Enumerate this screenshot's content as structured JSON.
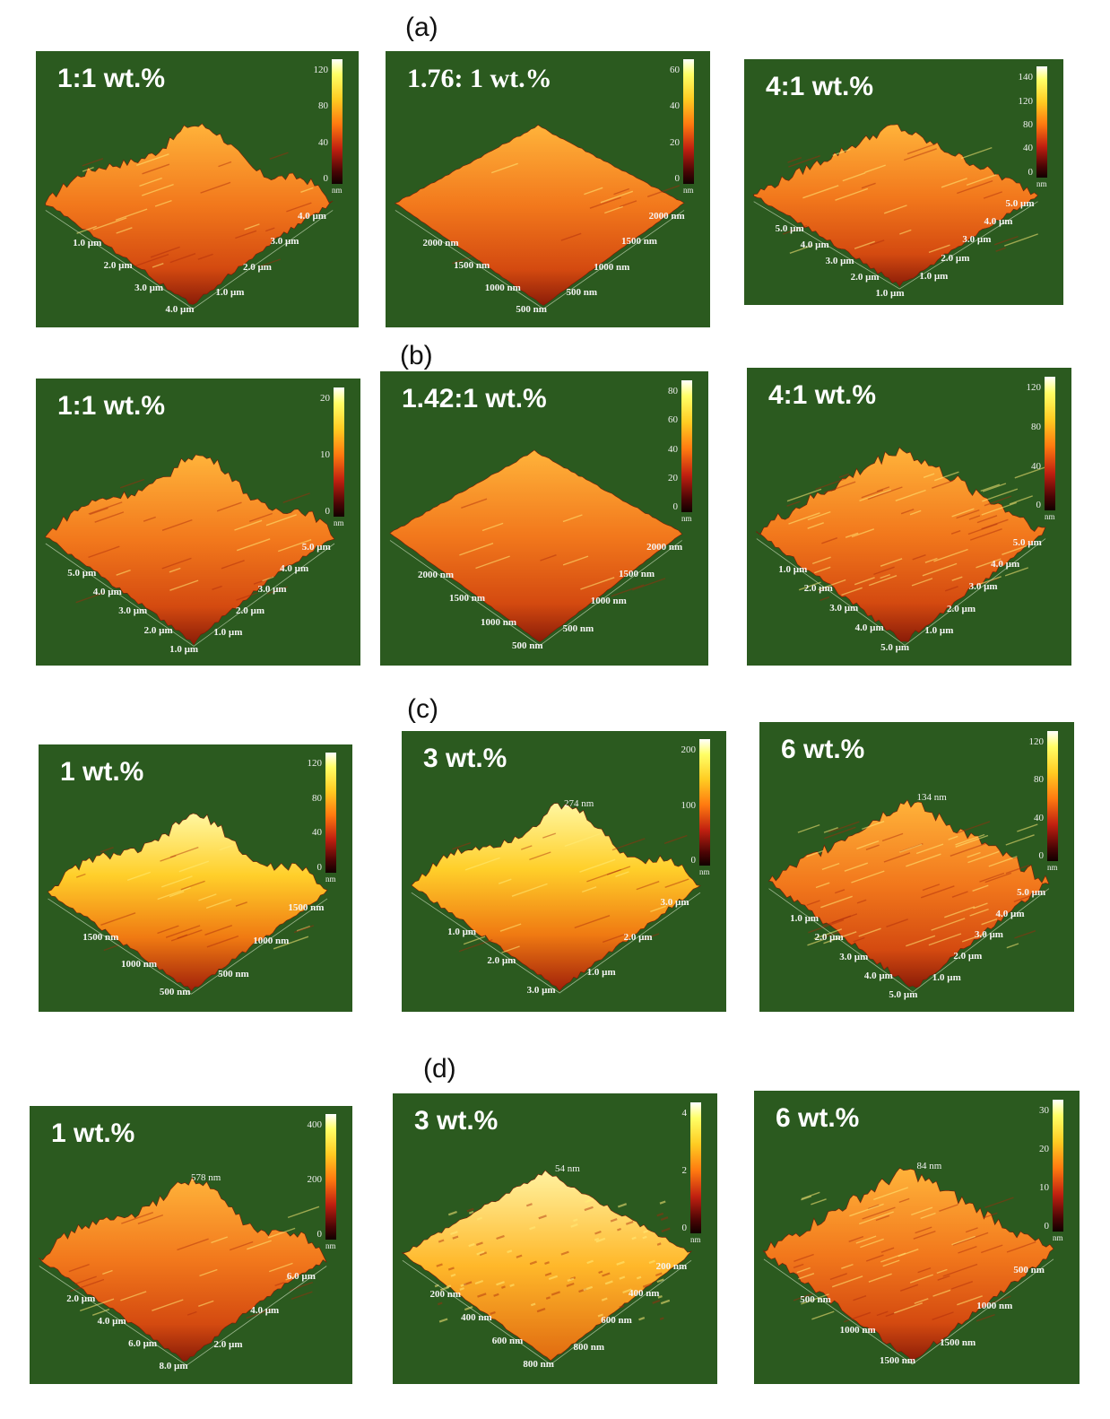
{
  "row_labels": [
    "(a)",
    "(b)",
    "(c)",
    "(d)"
  ],
  "panels": [
    {
      "title": "1:1 wt.%",
      "colorbar": [
        "120",
        "80",
        "40",
        "0"
      ],
      "unit": "nm",
      "axis_left": [
        "1.0 µm",
        "2.0 µm",
        "3.0 µm",
        "4.0 µm"
      ],
      "axis_right": [
        "1.0 µm",
        "2.0 µm",
        "3.0 µm",
        "4.0 µm"
      ],
      "peak": ""
    },
    {
      "title": "1.76: 1 wt.%",
      "colorbar": [
        "60",
        "40",
        "20",
        "0"
      ],
      "unit": "nm",
      "axis_left": [
        "2000 nm",
        "1500 nm",
        "1000 nm",
        "500 nm"
      ],
      "axis_right": [
        "500 nm",
        "1000 nm",
        "1500 nm",
        "2000 nm"
      ],
      "peak": ""
    },
    {
      "title": "4:1 wt.%",
      "colorbar": [
        "140",
        "120",
        "80",
        "40",
        "0"
      ],
      "unit": "nm",
      "axis_left": [
        "5.0 µm",
        "4.0 µm",
        "3.0 µm",
        "2.0 µm",
        "1.0 µm"
      ],
      "axis_right": [
        "1.0 µm",
        "2.0 µm",
        "3.0 µm",
        "4.0 µm",
        "5.0 µm"
      ],
      "peak": ""
    },
    {
      "title": "1:1 wt.%",
      "colorbar": [
        "20",
        "10",
        "0"
      ],
      "unit": "nm",
      "axis_left": [
        "5.0 µm",
        "4.0 µm",
        "3.0 µm",
        "2.0 µm",
        "1.0 µm"
      ],
      "axis_right": [
        "1.0 µm",
        "2.0 µm",
        "3.0 µm",
        "4.0 µm",
        "5.0 µm"
      ],
      "peak": ""
    },
    {
      "title": "1.42:1 wt.%",
      "colorbar": [
        "80",
        "60",
        "40",
        "20",
        "0"
      ],
      "unit": "nm",
      "axis_left": [
        "2000 nm",
        "1500 nm",
        "1000 nm",
        "500 nm"
      ],
      "axis_right": [
        "500 nm",
        "1000 nm",
        "1500 nm",
        "2000 nm"
      ],
      "peak": ""
    },
    {
      "title": "4:1 wt.%",
      "colorbar": [
        "120",
        "80",
        "40",
        "0"
      ],
      "unit": "nm",
      "axis_left": [
        "1.0 µm",
        "2.0 µm",
        "3.0 µm",
        "4.0 µm",
        "5.0 µm"
      ],
      "axis_right": [
        "1.0 µm",
        "2.0 µm",
        "3.0 µm",
        "4.0 µm",
        "5.0 µm"
      ],
      "peak": ""
    },
    {
      "title": "1 wt.%",
      "colorbar": [
        "120",
        "80",
        "40",
        "0"
      ],
      "unit": "nm",
      "axis_left": [
        "1500 nm",
        "1000 nm",
        "500 nm"
      ],
      "axis_right": [
        "500 nm",
        "1000 nm",
        "1500 nm"
      ],
      "peak": ""
    },
    {
      "title": "3 wt.%",
      "colorbar": [
        "200",
        "100",
        "0"
      ],
      "unit": "nm",
      "axis_left": [
        "1.0 µm",
        "2.0 µm",
        "3.0 µm"
      ],
      "axis_right": [
        "1.0 µm",
        "2.0 µm",
        "3.0 µm"
      ],
      "peak": "274 nm"
    },
    {
      "title": "6 wt.%",
      "colorbar": [
        "120",
        "80",
        "40",
        "0"
      ],
      "unit": "nm",
      "axis_left": [
        "1.0 µm",
        "2.0 µm",
        "3.0 µm",
        "4.0 µm",
        "5.0 µm"
      ],
      "axis_right": [
        "1.0 µm",
        "2.0 µm",
        "3.0 µm",
        "4.0 µm",
        "5.0 µm"
      ],
      "peak": "134 nm"
    },
    {
      "title": "1 wt.%",
      "colorbar": [
        "400",
        "200",
        "0"
      ],
      "unit": "nm",
      "axis_left": [
        "2.0 µm",
        "4.0 µm",
        "6.0 µm",
        "8.0 µm"
      ],
      "axis_right": [
        "2.0 µm",
        "4.0 µm",
        "6.0 µm"
      ],
      "peak": "578 nm"
    },
    {
      "title": "3 wt.%",
      "colorbar": [
        "4",
        "2",
        "0"
      ],
      "unit": "nm",
      "axis_left": [
        "200 nm",
        "400 nm",
        "600 nm",
        "800 nm"
      ],
      "axis_right": [
        "800 nm",
        "600 nm",
        "400 nm",
        "200 nm"
      ],
      "peak": "54 nm"
    },
    {
      "title": "6 wt.%",
      "colorbar": [
        "30",
        "20",
        "10",
        "0"
      ],
      "unit": "nm",
      "axis_left": [
        "500 nm",
        "1000 nm",
        "1500 nm"
      ],
      "axis_right": [
        "1500 nm",
        "1000 nm",
        "500 nm"
      ],
      "peak": "84 nm"
    }
  ]
}
